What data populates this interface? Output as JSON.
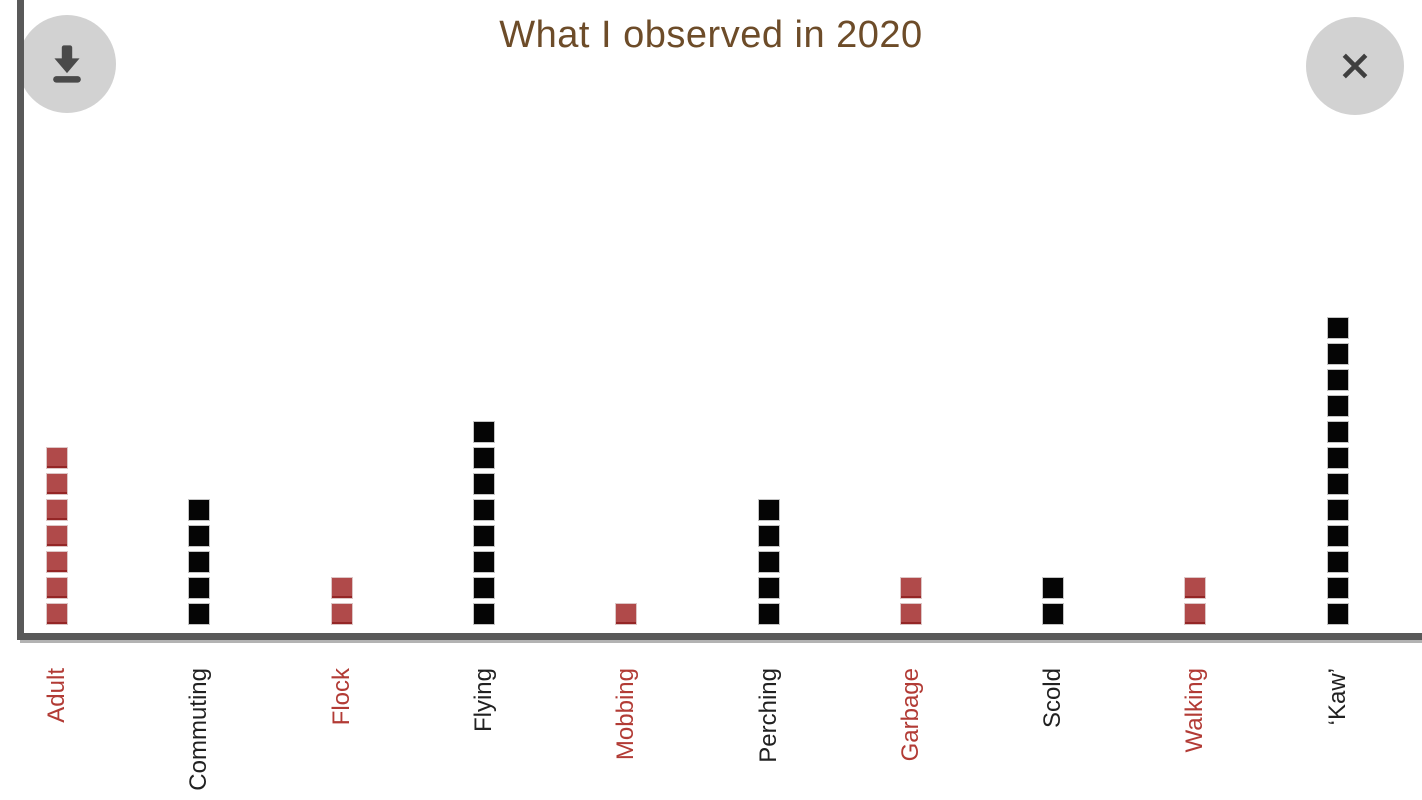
{
  "window": {
    "title": "What I observed in 2020"
  },
  "toolbar": {
    "download_icon": "download-icon",
    "close_icon": "close-icon"
  },
  "chart_data": {
    "type": "bar",
    "subtype": "unit_square_stack",
    "title": "What I observed in 2020",
    "xlabel": "",
    "ylabel": "",
    "ylim": [
      0,
      12
    ],
    "grid": false,
    "legend": false,
    "unit_per_square": 1,
    "categories": [
      "Adult",
      "Commuting",
      "Flock",
      "Flying",
      "Mobbing",
      "Perching",
      "Garbage",
      "Scold",
      "Walking",
      "‘Kaw’"
    ],
    "values": [
      7,
      5,
      2,
      8,
      1,
      5,
      2,
      2,
      2,
      12
    ],
    "bar_colors": [
      "#b04a4a",
      "#050505",
      "#b04a4a",
      "#050505",
      "#b04a4a",
      "#050505",
      "#b04a4a",
      "#050505",
      "#b04a4a",
      "#050505"
    ],
    "label_colors": [
      "#b23b35",
      "#212121",
      "#b23b35",
      "#212121",
      "#b23b35",
      "#212121",
      "#b23b35",
      "#212121",
      "#b23b35",
      "#212121"
    ]
  },
  "colors": {
    "background": "#ffffff",
    "title_text": "#6d4c29",
    "axis_line": "#595959",
    "axis_shadow": "#b3b3b3",
    "icon_circle": "#d2d2d2",
    "icon_glyph": "#4a4a4a",
    "red_square": "#b04a4a",
    "black_square": "#050505"
  }
}
